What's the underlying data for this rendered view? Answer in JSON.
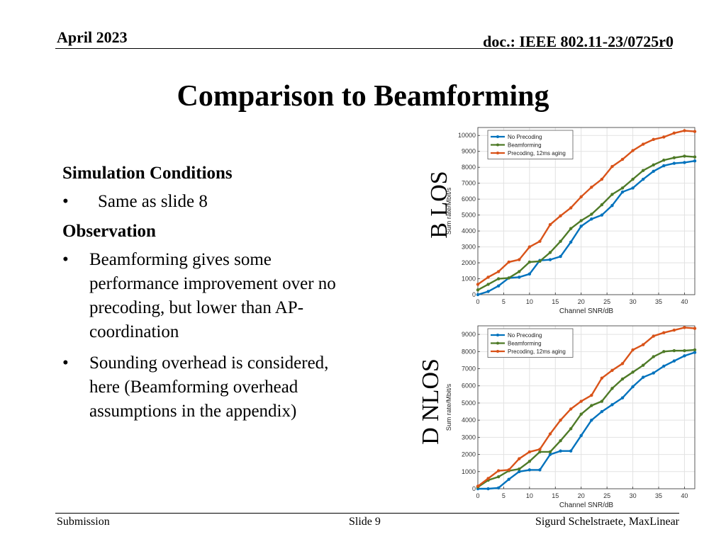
{
  "header": {
    "date": "April 2023",
    "doc": "doc.: IEEE 802.11-23/0725r0"
  },
  "title": "Comparison to Beamforming",
  "body": {
    "sim_heading": "Simulation Conditions",
    "sim_items": [
      "Same as slide 8"
    ],
    "obs_heading": "Observation",
    "obs_items": [
      "Beamforming gives some performance improvement over no precoding, but lower than AP-coordination",
      "Sounding overhead is considered, here (Beamforming overhead assumptions in the appendix)"
    ]
  },
  "labels": {
    "top_chart": "B LOS",
    "bottom_chart": "D NLOS"
  },
  "footer": {
    "left": "Submission",
    "center": "Slide 9",
    "right": "Sigurd Schelstraete, MaxLinear"
  },
  "colors": {
    "no_precoding": "#0072BD",
    "beamforming": "#4E7A27",
    "precoding": "#D95319"
  },
  "chart_data": [
    {
      "type": "line",
      "title": "",
      "xlabel": "Channel SNR/dB",
      "ylabel": "Sum rate/Mbit/s",
      "xlim": [
        0,
        42
      ],
      "ylim": [
        0,
        10500
      ],
      "xticks": [
        0,
        5,
        10,
        15,
        20,
        25,
        30,
        35,
        40
      ],
      "yticks": [
        0,
        1000,
        2000,
        3000,
        4000,
        5000,
        6000,
        7000,
        8000,
        9000,
        10000
      ],
      "grid": true,
      "legend": "top-left",
      "x": [
        0,
        2,
        4,
        6,
        8,
        10,
        12,
        14,
        16,
        18,
        20,
        22,
        24,
        26,
        28,
        30,
        32,
        34,
        36,
        38,
        40,
        42
      ],
      "series": [
        {
          "name": "No Precoding",
          "color": "#0072BD",
          "values": [
            0,
            200,
            550,
            1050,
            1100,
            1300,
            2150,
            2200,
            2400,
            3300,
            4300,
            4750,
            5000,
            5600,
            6450,
            6700,
            7250,
            7750,
            8100,
            8250,
            8300,
            8400
          ]
        },
        {
          "name": "Beamforming",
          "color": "#4E7A27",
          "values": [
            300,
            650,
            1000,
            1050,
            1450,
            2050,
            2100,
            2650,
            3350,
            4150,
            4650,
            5050,
            5650,
            6300,
            6700,
            7250,
            7800,
            8150,
            8450,
            8600,
            8700,
            8650
          ]
        },
        {
          "name": "Precoding, 12ms aging",
          "color": "#D95319",
          "values": [
            650,
            1100,
            1450,
            2050,
            2200,
            3000,
            3350,
            4400,
            4950,
            5450,
            6150,
            6750,
            7250,
            8050,
            8500,
            9050,
            9450,
            9750,
            9900,
            10150,
            10300,
            10250
          ]
        }
      ]
    },
    {
      "type": "line",
      "title": "",
      "xlabel": "Channel SNR/dB",
      "ylabel": "Sum rate/Mbit/s",
      "xlim": [
        0,
        42
      ],
      "ylim": [
        0,
        9500
      ],
      "xticks": [
        0,
        5,
        10,
        15,
        20,
        25,
        30,
        35,
        40
      ],
      "yticks": [
        0,
        1000,
        2000,
        3000,
        4000,
        5000,
        6000,
        7000,
        8000,
        9000
      ],
      "grid": true,
      "legend": "top-left",
      "x": [
        0,
        2,
        4,
        6,
        8,
        10,
        12,
        14,
        16,
        18,
        20,
        22,
        24,
        26,
        28,
        30,
        32,
        34,
        36,
        38,
        40,
        42
      ],
      "series": [
        {
          "name": "No Precoding",
          "color": "#0072BD",
          "values": [
            0,
            0,
            50,
            550,
            1000,
            1100,
            1100,
            2000,
            2200,
            2200,
            3100,
            4000,
            4500,
            4900,
            5300,
            5950,
            6500,
            6750,
            7150,
            7450,
            7750,
            7950
          ]
        },
        {
          "name": "Beamforming",
          "color": "#4E7A27",
          "values": [
            100,
            500,
            700,
            1050,
            1150,
            1600,
            2150,
            2150,
            2800,
            3500,
            4350,
            4850,
            5100,
            5850,
            6400,
            6800,
            7200,
            7700,
            8000,
            8050,
            8050,
            8100
          ]
        },
        {
          "name": "Precoding, 12ms aging",
          "color": "#D95319",
          "values": [
            150,
            600,
            1050,
            1100,
            1750,
            2150,
            2300,
            3200,
            4000,
            4650,
            5100,
            5450,
            6450,
            6900,
            7300,
            8100,
            8400,
            8900,
            9100,
            9250,
            9400,
            9350
          ]
        }
      ]
    }
  ]
}
